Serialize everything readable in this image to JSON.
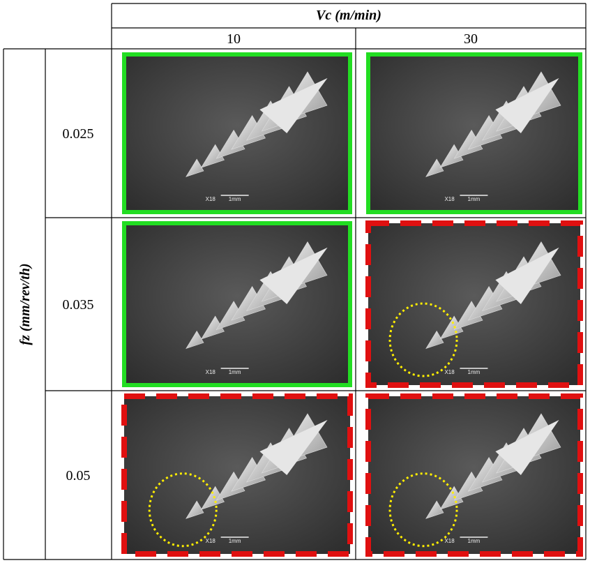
{
  "table": {
    "column_group_header": "Vc (m/min)",
    "columns": [
      "10",
      "30"
    ],
    "row_group_header": "fz (mm/rev/th)",
    "rows": [
      "0.025",
      "0.035",
      "0.05"
    ],
    "images": [
      [
        {
          "magnification": "X18",
          "scale": "1mm",
          "frame_color": "#22dd22",
          "dashed": false,
          "circled": false
        },
        {
          "magnification": "X18",
          "scale": "1mm",
          "frame_color": "#22dd22",
          "dashed": false,
          "circled": false
        }
      ],
      [
        {
          "magnification": "X18",
          "scale": "1mm",
          "frame_color": "#22dd22",
          "dashed": false,
          "circled": false
        },
        {
          "magnification": "X18",
          "scale": "1mm",
          "frame_color": "#e01010",
          "dashed": true,
          "circled": true
        }
      ],
      [
        {
          "magnification": "X18",
          "scale": "1mm",
          "frame_color": "#e01010",
          "dashed": true,
          "circled": true
        },
        {
          "magnification": "X18",
          "scale": "1mm",
          "frame_color": "#e01010",
          "dashed": true,
          "circled": true
        }
      ]
    ]
  }
}
